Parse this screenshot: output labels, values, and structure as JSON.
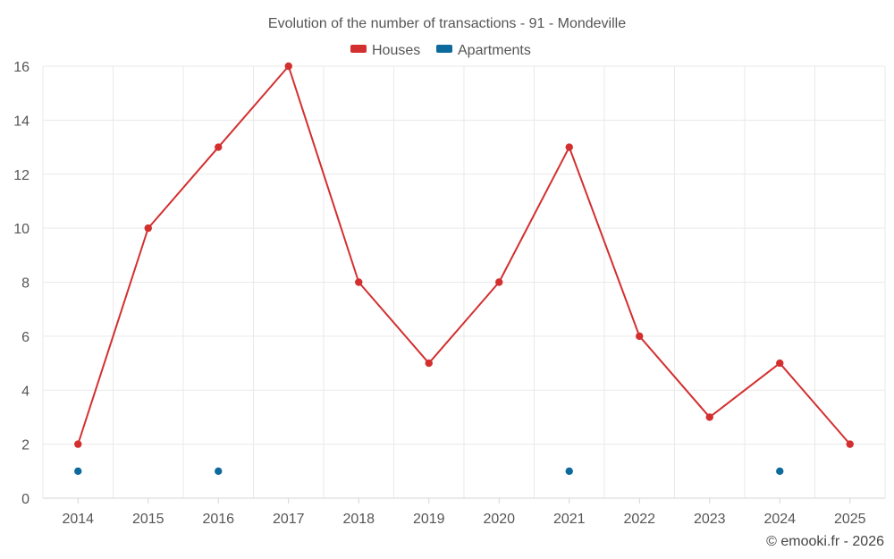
{
  "chart_data": {
    "type": "line",
    "title": "Evolution of the number of transactions - 91 - Mondeville",
    "categories": [
      "2014",
      "2015",
      "2016",
      "2017",
      "2018",
      "2019",
      "2020",
      "2021",
      "2022",
      "2023",
      "2024",
      "2025"
    ],
    "ylim": [
      0,
      16
    ],
    "yticks": [
      0,
      2,
      4,
      6,
      8,
      10,
      12,
      14,
      16
    ],
    "grid": true,
    "legend_position": "top-center",
    "series": [
      {
        "name": "Houses",
        "color": "#d32f2f",
        "style": "line-with-markers",
        "values": [
          2,
          10,
          13,
          16,
          8,
          5,
          8,
          13,
          6,
          3,
          5,
          2
        ]
      },
      {
        "name": "Apartments",
        "color": "#0e6a9c",
        "style": "markers-only",
        "values": [
          1,
          null,
          1,
          null,
          null,
          null,
          null,
          1,
          null,
          null,
          1,
          null
        ]
      }
    ]
  },
  "footer": {
    "copyright": "© emooki.fr - 2026"
  }
}
